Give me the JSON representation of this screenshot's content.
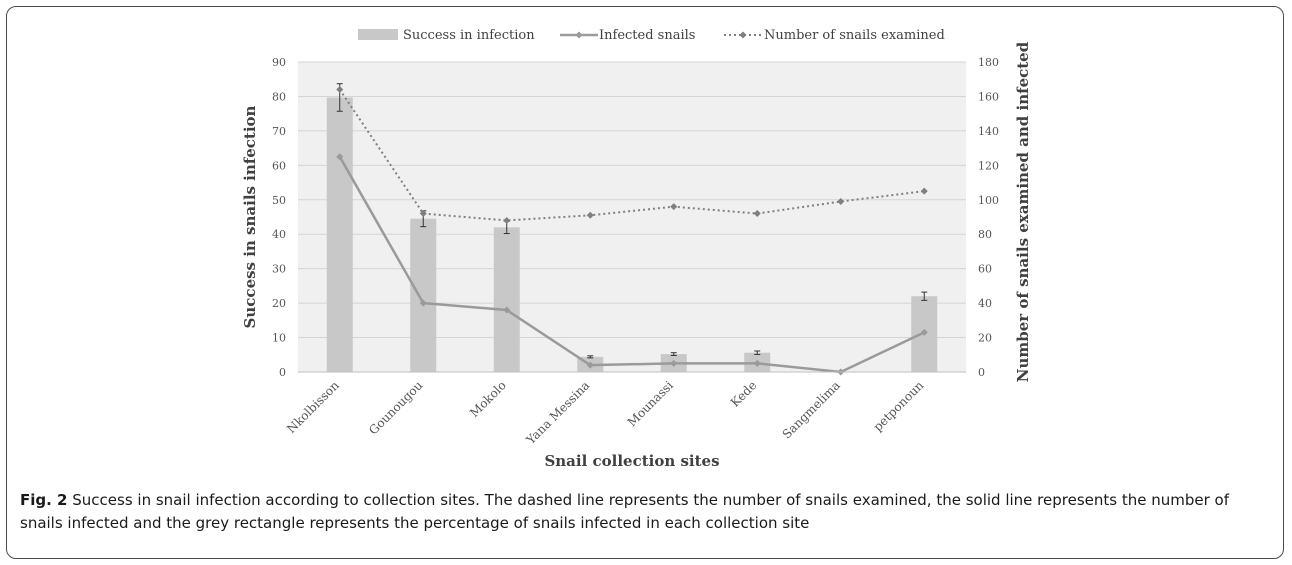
{
  "chart_data": {
    "type": "bar",
    "categories": [
      "Nkolbisson",
      "Gounougou",
      "Mokolo",
      "Yana Messina",
      "Mounassi",
      "Kede",
      "Sangmelima",
      "petponoun"
    ],
    "xlabel": "Snail collection sites",
    "ylabel": "Success in snails infection",
    "y2label": "Number of snails examined and infected",
    "ylim": [
      0,
      90
    ],
    "yticks": [
      0,
      10,
      20,
      30,
      40,
      50,
      60,
      70,
      80,
      90
    ],
    "y2lim": [
      0,
      180
    ],
    "y2ticks": [
      0,
      20,
      40,
      60,
      80,
      100,
      120,
      140,
      160,
      180
    ],
    "legend_position": "top",
    "series": [
      {
        "name": "Success in infection",
        "kind": "bar",
        "axis": "left",
        "color": "#c8c8c8",
        "values": [
          79.7,
          44.5,
          42,
          4.4,
          5.2,
          5.6,
          0,
          22
        ],
        "errors": [
          4,
          2.3,
          1.8,
          0.3,
          0.4,
          0.5,
          0,
          1.2
        ]
      },
      {
        "name": "Infected snails",
        "kind": "line",
        "style": "solid",
        "axis": "right",
        "color": "#9a9a9a",
        "values": [
          125,
          40,
          36,
          4,
          5,
          5,
          0,
          23
        ]
      },
      {
        "name": "Number of snails examined",
        "kind": "line",
        "style": "dotted",
        "axis": "right",
        "color": "#7f7f7f",
        "values": [
          164,
          92,
          88,
          91,
          96,
          92,
          99,
          105
        ]
      }
    ]
  },
  "caption": {
    "label": "Fig. 2",
    "text": " Success in snail infection according to collection sites. The dashed line represents the number of snails examined, the solid line represents the number of snails infected and the grey rectangle represents the percentage of snails infected in each collection site"
  }
}
